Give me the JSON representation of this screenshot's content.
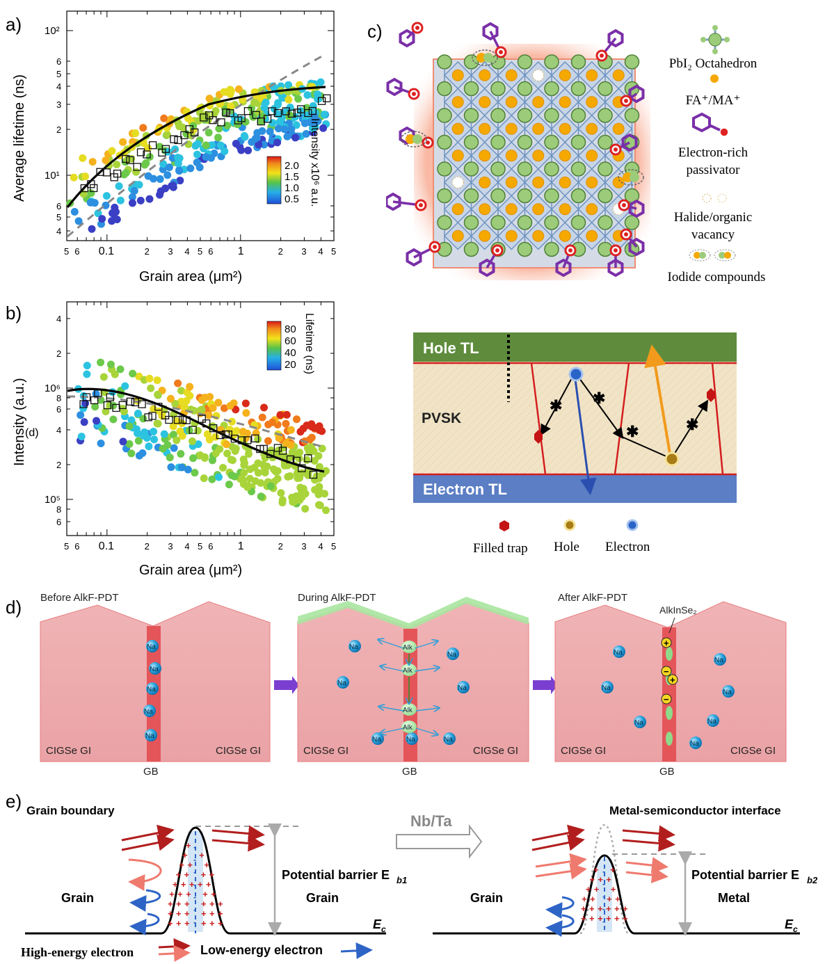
{
  "panels": {
    "a": {
      "label": "a)",
      "xlabel": "Grain area (μm²)",
      "ylabel": "Average lifetime (ns)",
      "colorbar_label": "Intensity x10⁶ a.u.",
      "colorbar_ticks": [
        "2.0",
        "1.5",
        "1.0",
        "0.5"
      ]
    },
    "b": {
      "label": "b)",
      "xlabel": "Grain area (μm²)",
      "ylabel": "Intensity (a.u.)",
      "ylabel_overlap": "(d)",
      "colorbar_label": "Lifetime (ns)",
      "colorbar_ticks": [
        "80",
        "60",
        "40",
        "20"
      ]
    },
    "c": {
      "label": "c)",
      "legend": [
        {
          "icon": "octahedron-icon",
          "text": "PbI₂ Octahedron"
        },
        {
          "icon": "cation-dot-icon",
          "text": "FA⁺/MA⁺"
        },
        {
          "icon": "passivator-icon",
          "text": "Electron-rich passivator"
        },
        {
          "icon": "vacancy-icon",
          "text": "Halide/organic vacancy"
        },
        {
          "icon": "iodide-compound-icon",
          "text": "Iodide compounds"
        }
      ],
      "layers": {
        "top": "Hole TL",
        "middle": "PVSK",
        "bottom": "Electron TL"
      },
      "carrier_legend": [
        "Filled trap",
        "Hole",
        "Electron"
      ]
    },
    "d": {
      "label": "d)",
      "stages": [
        {
          "title": "Before AlkF-PDT",
          "left": "CIGSe GI",
          "right": "CIGSe GI",
          "gb": "GB"
        },
        {
          "title": "During AlkF-PDT",
          "left": "CIGSe GI",
          "right": "CIGSe GI",
          "gb": "GB"
        },
        {
          "title": "After AlkF-PDT",
          "left": "CIGSe GI",
          "right": "CIGSe GI",
          "gb": "GB",
          "annotation": "AlkInSe₂"
        }
      ],
      "na": "Na",
      "alk": "Alk"
    },
    "e": {
      "label": "e)",
      "left_title": "Grain boundary",
      "right_title": "Metal-semiconductor interface",
      "arrow_label": "Nb/Ta",
      "left": {
        "side_l": "Grain",
        "side_r": "Grain",
        "barrier": "Potential barrier E",
        "barrier_sub": "b1",
        "ec": "E",
        "ec_sub": "c"
      },
      "right": {
        "side_l": "Grain",
        "side_r": "Metal",
        "barrier": "Potential barrier E",
        "barrier_sub": "b2",
        "ec": "E",
        "ec_sub": "c"
      },
      "legend_high": "High-energy electron",
      "legend_low": "Low-energy electron"
    }
  },
  "colors": {
    "hole_tl": "#5e8c3c",
    "electron_tl": "#5b7ec4",
    "pvsk_bg": "#f1e4c6",
    "boundary": "#d41e1e",
    "grain_fill": "#ec9c9e",
    "gb_stripe": "#e4555a",
    "na_ball": "#2fa6de",
    "passivator": "#7a2fa8",
    "octahedron": "#9ccc7a"
  }
}
